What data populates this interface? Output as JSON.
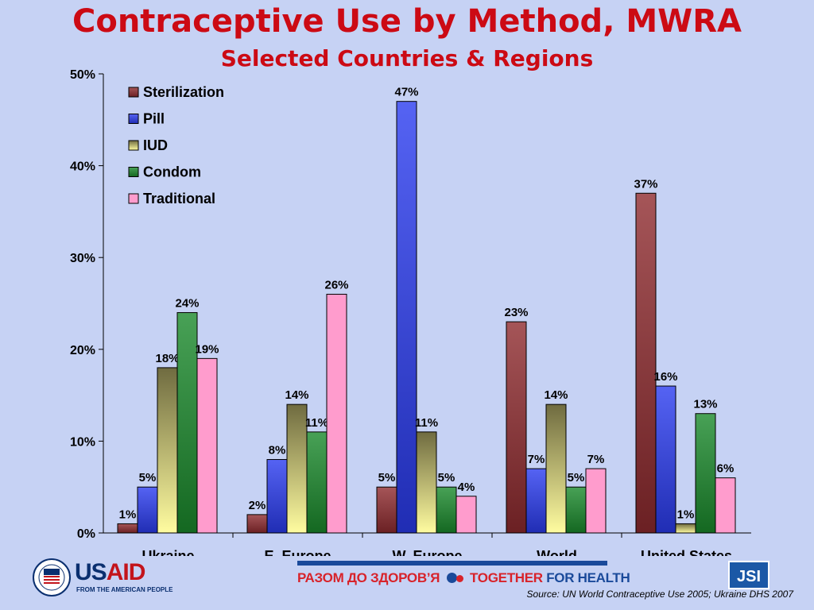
{
  "header": {
    "title": "Contraceptive Use by Method, MWRA",
    "subtitle": "Selected Countries & Regions"
  },
  "chart_data": {
    "type": "bar",
    "categories": [
      "Ukraine",
      "E. Europe",
      "W. Europe",
      "World",
      "United States"
    ],
    "series": [
      {
        "name": "Sterilization",
        "values": [
          1,
          2,
          5,
          23,
          37
        ],
        "color": "#8e2b2e"
      },
      {
        "name": "Pill",
        "values": [
          5,
          8,
          47,
          7,
          16
        ],
        "color": "#2b3cf0"
      },
      {
        "name": "IUD",
        "values": [
          18,
          14,
          11,
          14,
          1
        ],
        "color": "#c9c275"
      },
      {
        "name": "Condom",
        "values": [
          24,
          11,
          5,
          5,
          13
        ],
        "color": "#1a8a2c"
      },
      {
        "name": "Traditional",
        "values": [
          19,
          26,
          4,
          7,
          6
        ],
        "color": "#ff9ccd"
      }
    ],
    "data_labels": [
      [
        "1%",
        "5%",
        "18%",
        "24%",
        "19%"
      ],
      [
        "2%",
        "8%",
        "14%",
        "11%",
        "26%"
      ],
      [
        "5%",
        "47%",
        "11%",
        "5%",
        "4%"
      ],
      [
        "23%",
        "7%",
        "14%",
        "5%",
        "7%"
      ],
      [
        "37%",
        "16%",
        "1%",
        "13%",
        "6%"
      ]
    ],
    "yticks": [
      "0%",
      "10%",
      "20%",
      "30%",
      "40%",
      "50%"
    ],
    "ylim": [
      0,
      50
    ],
    "legend_position": "top-left",
    "grid": false
  },
  "footer": {
    "usaid_word_a": "US",
    "usaid_word_b": "AID",
    "usaid_tag": "FROM THE AMERICAN PEOPLE",
    "banner_ua": "РАЗОМ ДО ЗДОРОВ’Я",
    "banner_en_a": "TOGETHER ",
    "banner_en_b": "FOR HEALTH",
    "jsi": "JSI",
    "source": "Source: UN  World Contraceptive Use 2005; Ukraine DHS 2007"
  }
}
